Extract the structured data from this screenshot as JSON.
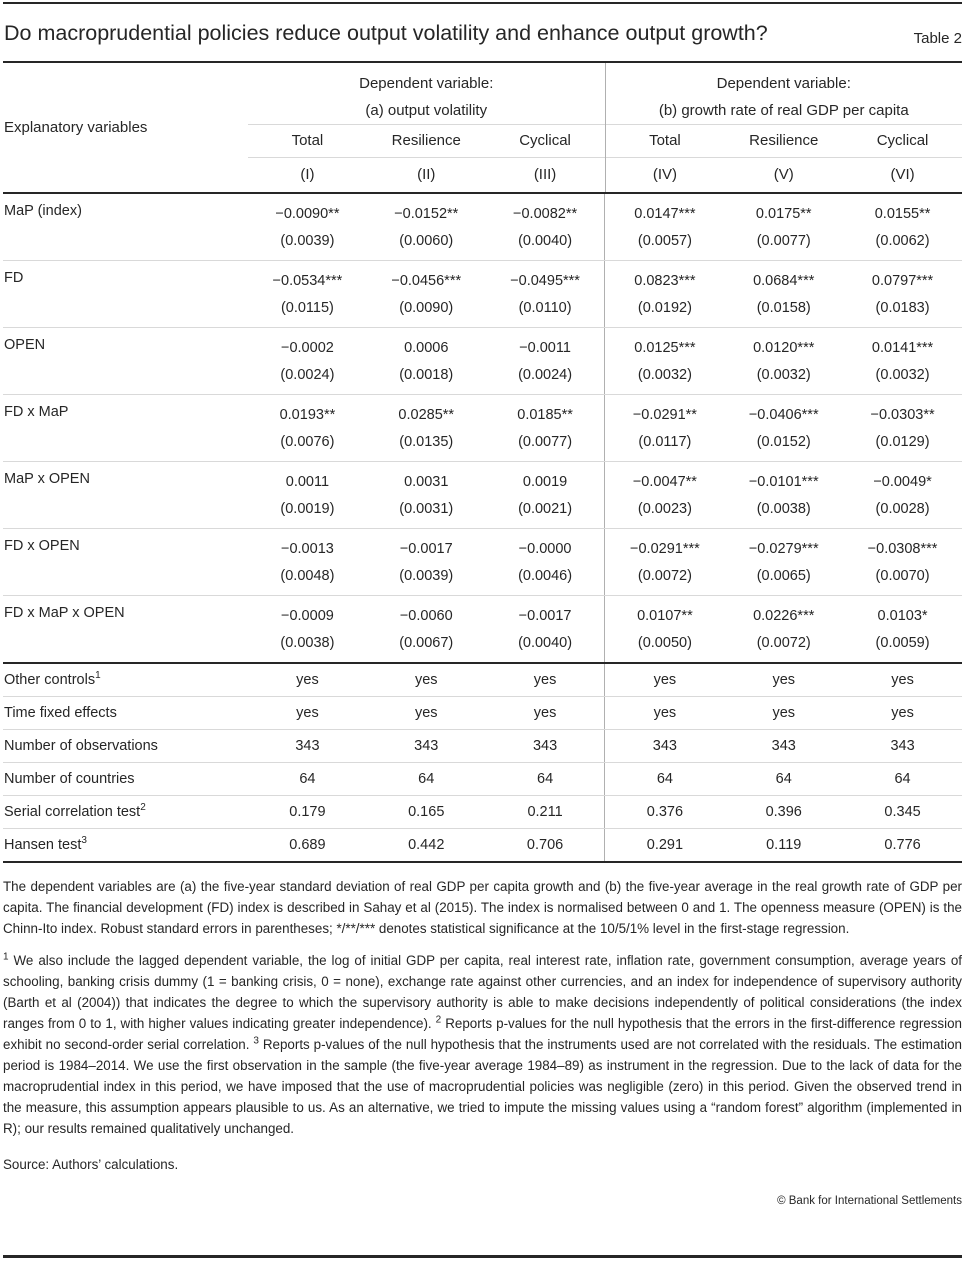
{
  "page": {
    "title": "Do macroprudential policies reduce output volatility and enhance output growth?",
    "table_label": "Table 2",
    "source": "Source: Authors’ calculations.",
    "copyright": "© Bank for International Settlements"
  },
  "table": {
    "row_header": "Explanatory variables",
    "panels": [
      {
        "title_line1": "Dependent variable:",
        "title_line2": "(a) output volatility",
        "columns": [
          "Total",
          "Resilience",
          "Cyclical"
        ],
        "numbers": [
          "(I)",
          "(II)",
          "(III)"
        ]
      },
      {
        "title_line1": "Dependent variable:",
        "title_line2": "(b) growth rate of real GDP per capita",
        "columns": [
          "Total",
          "Resilience",
          "Cyclical"
        ],
        "numbers": [
          "(IV)",
          "(V)",
          "(VI)"
        ]
      }
    ],
    "coef_rows": [
      {
        "label": "MaP (index)",
        "coefs": [
          "−0.0090**",
          "−0.0152**",
          "−0.0082**",
          "0.0147***",
          "0.0175**",
          "0.0155**"
        ],
        "ses": [
          "(0.0039)",
          "(0.0060)",
          "(0.0040)",
          "(0.0057)",
          "(0.0077)",
          "(0.0062)"
        ]
      },
      {
        "label": "FD",
        "coefs": [
          "−0.0534***",
          "−0.0456***",
          "−0.0495***",
          "0.0823***",
          "0.0684***",
          "0.0797***"
        ],
        "ses": [
          "(0.0115)",
          "(0.0090)",
          "(0.0110)",
          "(0.0192)",
          "(0.0158)",
          "(0.0183)"
        ]
      },
      {
        "label": "OPEN",
        "coefs": [
          "−0.0002",
          "0.0006",
          "−0.0011",
          "0.0125***",
          "0.0120***",
          "0.0141***"
        ],
        "ses": [
          "(0.0024)",
          "(0.0018)",
          "(0.0024)",
          "(0.0032)",
          "(0.0032)",
          "(0.0032)"
        ]
      },
      {
        "label": "FD x MaP",
        "coefs": [
          "0.0193**",
          "0.0285**",
          "0.0185**",
          "−0.0291**",
          "−0.0406***",
          "−0.0303**"
        ],
        "ses": [
          "(0.0076)",
          "(0.0135)",
          "(0.0077)",
          "(0.0117)",
          "(0.0152)",
          "(0.0129)"
        ]
      },
      {
        "label": "MaP x OPEN",
        "coefs": [
          "0.0011",
          "0.0031",
          "0.0019",
          "−0.0047**",
          "−0.0101***",
          "−0.0049*"
        ],
        "ses": [
          "(0.0019)",
          "(0.0031)",
          "(0.0021)",
          "(0.0023)",
          "(0.0038)",
          "(0.0028)"
        ]
      },
      {
        "label": "FD x OPEN",
        "coefs": [
          "−0.0013",
          "−0.0017",
          "−0.0000",
          "−0.0291***",
          "−0.0279***",
          "−0.0308***"
        ],
        "ses": [
          "(0.0048)",
          "(0.0039)",
          "(0.0046)",
          "(0.0072)",
          "(0.0065)",
          "(0.0070)"
        ]
      },
      {
        "label": "FD x MaP x OPEN",
        "coefs": [
          "−0.0009",
          "−0.0060",
          "−0.0017",
          "0.0107**",
          "0.0226***",
          "0.0103*"
        ],
        "ses": [
          "(0.0038)",
          "(0.0067)",
          "(0.0040)",
          "(0.0050)",
          "(0.0072)",
          "(0.0059)"
        ]
      }
    ],
    "summary_rows": [
      {
        "label": "Other controls",
        "sup": "1",
        "values": [
          "yes",
          "yes",
          "yes",
          "yes",
          "yes",
          "yes"
        ]
      },
      {
        "label": "Time fixed effects",
        "sup": "",
        "values": [
          "yes",
          "yes",
          "yes",
          "yes",
          "yes",
          "yes"
        ]
      },
      {
        "label": "Number of observations",
        "sup": "",
        "values": [
          "343",
          "343",
          "343",
          "343",
          "343",
          "343"
        ]
      },
      {
        "label": "Number of countries",
        "sup": "",
        "values": [
          "64",
          "64",
          "64",
          "64",
          "64",
          "64"
        ]
      },
      {
        "label": "Serial correlation test",
        "sup": "2",
        "values": [
          "0.179",
          "0.165",
          "0.211",
          "0.376",
          "0.396",
          "0.345"
        ]
      },
      {
        "label": "Hansen test",
        "sup": "3",
        "values": [
          "0.689",
          "0.442",
          "0.706",
          "0.291",
          "0.119",
          "0.776"
        ]
      }
    ]
  },
  "notes": {
    "para1": "The dependent variables are (a) the five-year standard deviation of real GDP per capita growth and (b) the five-year average in the real growth rate of GDP per capita. The financial development (FD) index is described in Sahay et al (2015). The index is normalised between 0 and 1. The openness measure (OPEN) is the Chinn-Ito index. Robust standard errors in parentheses; */**/*** denotes statistical significance at the 10/5/1% level in the first-stage regression.",
    "para2_segments": [
      {
        "sup": "1"
      },
      {
        "text": "  We also include the lagged dependent variable, the log of initial GDP per capita, real interest rate, inflation rate, government consumption, average years of schooling, banking crisis dummy (1 = banking crisis, 0 = none), exchange rate against other currencies, and an index for independence of supervisory authority (Barth et al (2004)) that indicates the degree to which the supervisory authority is able to make decisions independently of political considerations (the index ranges from 0 to 1, with higher values indicating greater independence).    "
      },
      {
        "sup": "2"
      },
      {
        "text": "  Reports p-values for the null hypothesis that the errors in the first-difference regression exhibit no second-order serial correlation.    "
      },
      {
        "sup": "3"
      },
      {
        "text": "  Reports p-values of the null hypothesis that the instruments used are not correlated with the residuals. The estimation period is 1984–2014. We use the first observation in the sample (the five-year average 1984–89) as instrument in the regression. Due to the lack of data for the macroprudential index in this period, we have imposed that the use of macroprudential policies was negligible (zero) in this period. Given the observed trend in the measure, this assumption appears plausible to us. As an alternative, we tried to impute the missing values using a “random forest” algorithm (implemented in R); our results remained qualitatively unchanged."
      }
    ]
  }
}
